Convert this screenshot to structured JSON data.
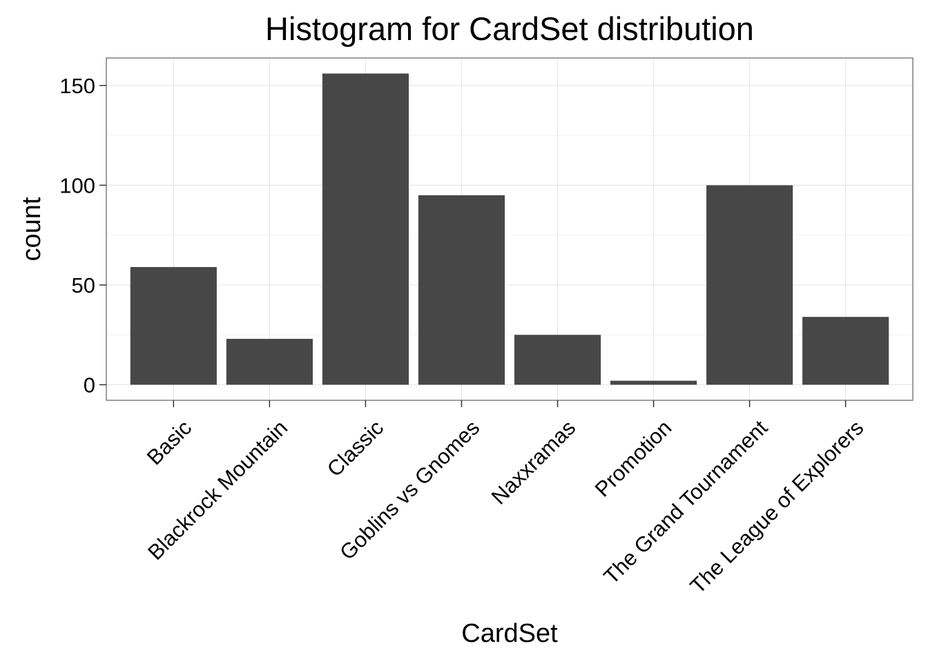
{
  "chart_data": {
    "type": "bar",
    "title": "Histogram for CardSet distribution",
    "xlabel": "CardSet",
    "ylabel": "count",
    "categories": [
      "Basic",
      "Blackrock Mountain",
      "Classic",
      "Goblins vs Gnomes",
      "Naxxramas",
      "Promotion",
      "The Grand Tournament",
      "The League of Explorers"
    ],
    "values": [
      59,
      23,
      156,
      95,
      25,
      2,
      100,
      34
    ],
    "ylim": [
      -7.8,
      163.8
    ],
    "yticks": [
      0,
      50,
      100,
      150
    ],
    "grid": true,
    "legend": "none",
    "colors": {
      "bar": "#474747",
      "panel_border": "#7f7f7f",
      "grid_major": "#e6e6e6",
      "grid_minor": "#f2f2f2",
      "text": "#000000",
      "axis_tick": "#333333"
    }
  }
}
